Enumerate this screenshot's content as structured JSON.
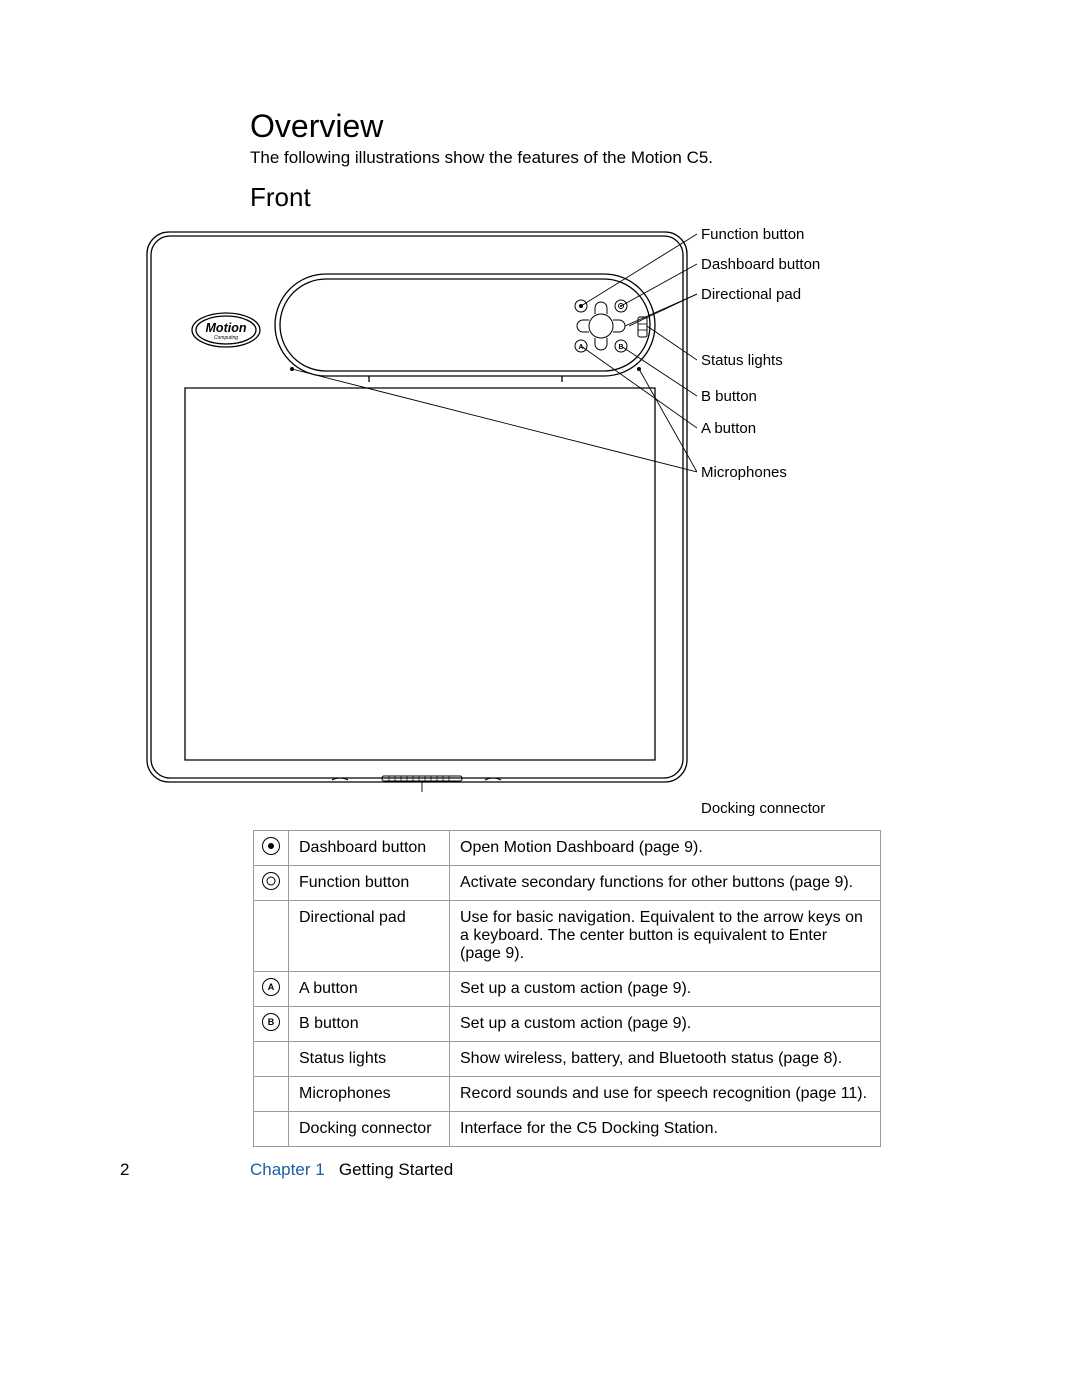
{
  "page": {
    "number": "2",
    "chapter_label": "Chapter 1",
    "chapter_title": "Getting Started"
  },
  "headings": {
    "overview": "Overview",
    "overview_body": "The following illustrations show the features of the Motion C5.",
    "front": "Front"
  },
  "diagram": {
    "logo_text": "Motion",
    "callouts": {
      "function_button": "Function button",
      "dashboard_button": "Dashboard button",
      "directional_pad": "Directional pad",
      "status_lights": "Status lights",
      "b_button": "B button",
      "a_button": "A button",
      "microphones": "Microphones",
      "docking_connector": "Docking connector"
    }
  },
  "feature_table": {
    "rows": [
      {
        "icon": "dot",
        "name": "Dashboard button",
        "description": "Open Motion Dashboard (page 9)."
      },
      {
        "icon": "ring",
        "name": "Function button",
        "description": "Activate secondary functions for other buttons (page 9)."
      },
      {
        "icon": "",
        "name": "Directional pad",
        "description": "Use for basic navigation. Equivalent to the arrow keys on a keyboard. The center button is equivalent to Enter (page 9)."
      },
      {
        "icon": "A",
        "name": "A button",
        "description": "Set up a custom action (page 9)."
      },
      {
        "icon": "B",
        "name": "B button",
        "description": "Set up a custom action (page 9)."
      },
      {
        "icon": "",
        "name": "Status lights",
        "description": "Show wireless, battery, and Bluetooth status (page 8)."
      },
      {
        "icon": "",
        "name": "Microphones",
        "description": "Record sounds and use for speech recognition (page 11)."
      },
      {
        "icon": "",
        "name": "Docking connector",
        "description": "Interface for the C5 Docking Station."
      }
    ]
  },
  "colors": {
    "text": "#000000",
    "stroke": "#000000",
    "stroke_light": "#9a9a9a",
    "chapter_link": "#1a5ea8",
    "background": "#ffffff"
  }
}
